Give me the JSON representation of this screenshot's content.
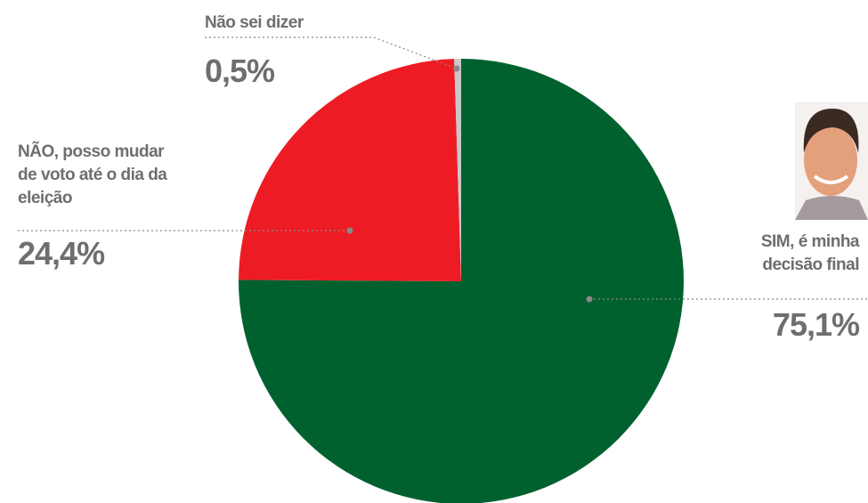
{
  "chart_data": {
    "type": "pie",
    "categories": [
      "SIM, é minha decisão final",
      "NÃO, posso mudar de voto até o dia da eleição",
      "Não sei dizer"
    ],
    "values": [
      75.1,
      24.4,
      0.5
    ],
    "value_labels": [
      "75,1%",
      "24,4%",
      "0,5%"
    ],
    "colors": [
      "#00612f",
      "#ed1c24",
      "#c9c9c9"
    ]
  }
}
